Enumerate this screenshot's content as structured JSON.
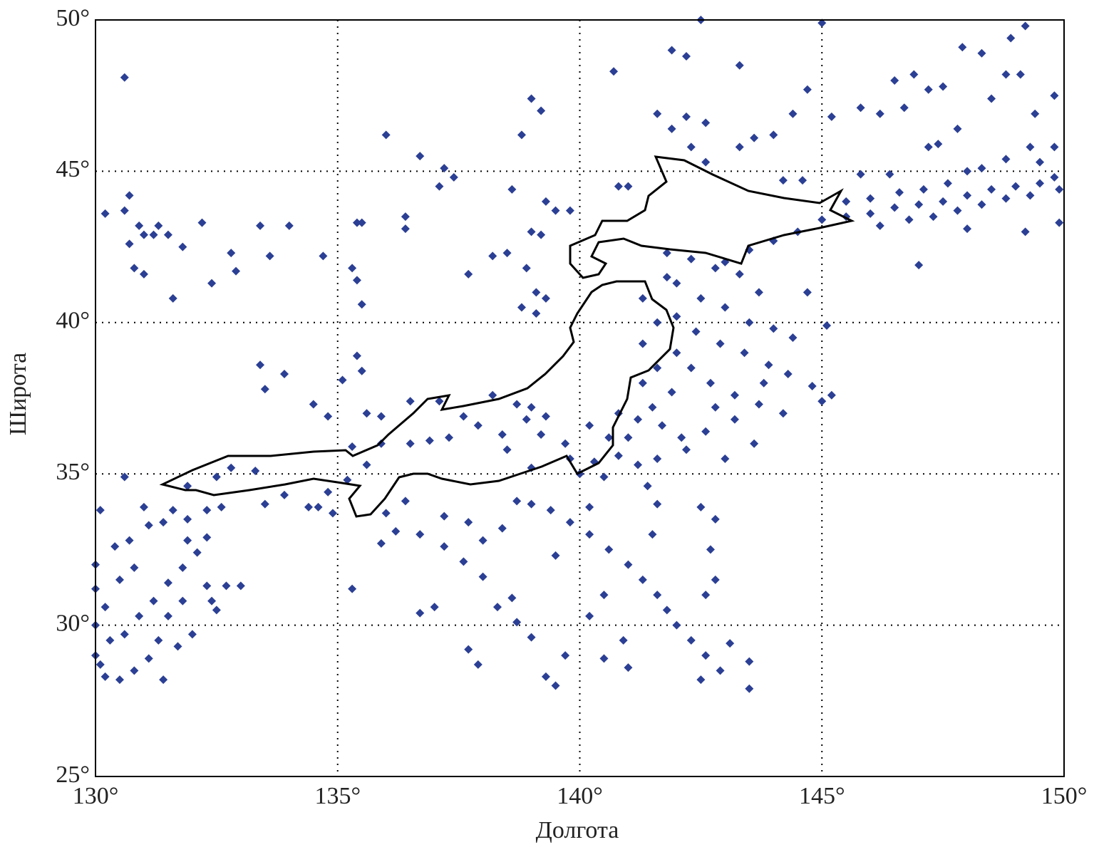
{
  "chart_data": {
    "type": "scatter",
    "xlabel": "Долгота",
    "ylabel": "Широта",
    "color": "#2b3f94",
    "grid": true,
    "xlim": [
      130,
      150
    ],
    "ylim": [
      25,
      50
    ],
    "xticks": [
      {
        "value": 130,
        "label": "130°"
      },
      {
        "value": 135,
        "label": "135°"
      },
      {
        "value": 140,
        "label": "140°"
      },
      {
        "value": 145,
        "label": "145°"
      },
      {
        "value": 150,
        "label": "150°"
      }
    ],
    "yticks": [
      {
        "value": 25,
        "label": "25°"
      },
      {
        "value": 30,
        "label": "30°"
      },
      {
        "value": 35,
        "label": "35°"
      },
      {
        "value": 40,
        "label": "40°"
      },
      {
        "value": 45,
        "label": "45°"
      },
      {
        "value": 50,
        "label": "50°"
      }
    ],
    "x": [
      130.6,
      130.2,
      130.6,
      130.7,
      130.9,
      131.0,
      131.2,
      131.5,
      131.3,
      130.7,
      130.8,
      131.0,
      131.8,
      131.6,
      132.2,
      132.4,
      132.8,
      132.9,
      133.4,
      133.6,
      134.0,
      134.7,
      135.3,
      135.4,
      135.5,
      135.4,
      135.5,
      136.0,
      136.4,
      136.4,
      136.7,
      137.2,
      137.4,
      137.1,
      137.7,
      138.2,
      138.5,
      138.6,
      138.8,
      139.0,
      139.2,
      139.3,
      139.5,
      139.8,
      139.0,
      139.2,
      138.9,
      139.1,
      138.8,
      139.1,
      139.3,
      133.4,
      133.5,
      133.9,
      134.5,
      134.8,
      135.1,
      135.4,
      135.5,
      135.6,
      135.9,
      136.5,
      137.1,
      137.6,
      138.2,
      138.7,
      139.0,
      139.3,
      138.9,
      138.4,
      137.9,
      137.3,
      136.9,
      136.5,
      135.9,
      135.3,
      135.6,
      135.2,
      134.8,
      134.6,
      134.4,
      134.9,
      133.9,
      133.5,
      133.3,
      132.8,
      132.5,
      132.6,
      131.9,
      130.6,
      140.7,
      141.9,
      142.2,
      142.5,
      143.3,
      141.6,
      141.9,
      142.2,
      142.6,
      142.3,
      142.6,
      143.3,
      143.6,
      144.0,
      144.4,
      144.7,
      145.0,
      145.2,
      145.8,
      146.2,
      146.5,
      146.9,
      146.7,
      147.2,
      147.5,
      147.9,
      148.3,
      148.9,
      149.2,
      148.8,
      149.1,
      149.4,
      149.8,
      148.5,
      147.8,
      147.2,
      148.3,
      147.4,
      146.4,
      145.8,
      144.6,
      144.2,
      141.0,
      140.8,
      145.5,
      146.0,
      146.5,
      147.0,
      147.5,
      148.0,
      148.5,
      149.0,
      149.5,
      149.9,
      146.2,
      146.8,
      147.3,
      147.8,
      148.3,
      148.8,
      149.3,
      149.8,
      149.5,
      149.8,
      149.3,
      148.8,
      148.0,
      147.6,
      147.1,
      146.6,
      146.0,
      145.5,
      145.0,
      144.5,
      144.0,
      143.5,
      143.0,
      149.2,
      149.9,
      148.0,
      147.0,
      141.8,
      142.3,
      142.8,
      143.3,
      143.7,
      142.0,
      142.5,
      143.0,
      143.5,
      144.0,
      142.0,
      142.4,
      142.9,
      143.4,
      143.9,
      144.3,
      144.8,
      145.0,
      142.0,
      142.3,
      142.7,
      143.2,
      143.7,
      144.2,
      141.9,
      141.5,
      141.7,
      142.1,
      142.6,
      143.2,
      141.2,
      141.0,
      140.8,
      141.2,
      141.6,
      142.2,
      140.3,
      139.8,
      140.0,
      140.5,
      141.4,
      141.6,
      140.8,
      141.3,
      141.6,
      141.3,
      141.6,
      141.3,
      141.8,
      143.8,
      144.4,
      144.7,
      145.1,
      145.2,
      142.8,
      143.0,
      143.6,
      138.7,
      139.0,
      139.4,
      139.8,
      140.2,
      140.6,
      141.0,
      141.3,
      141.6,
      141.8,
      142.0,
      142.3,
      142.6,
      142.9,
      142.5,
      143.1,
      143.5,
      143.5,
      142.8,
      142.5,
      142.7,
      142.8,
      142.6,
      140.5,
      140.2,
      140.9,
      139.7,
      139.3,
      139.0,
      138.7,
      138.3,
      138.6,
      138.0,
      137.6,
      137.2,
      138.0,
      138.4,
      137.7,
      137.2,
      136.7,
      136.4,
      136.0,
      135.9,
      137.0,
      136.7,
      137.7,
      137.9,
      140.5,
      141.0,
      139.5,
      140.2,
      139.5,
      141.5,
      139.0,
      138.5,
      139.2,
      139.7,
      140.2,
      140.6,
      135.3,
      136.2,
      130.0,
      130.0,
      130.2,
      130.0,
      130.3,
      130.6,
      130.9,
      131.2,
      131.5,
      131.8,
      132.1,
      130.0,
      130.2,
      130.5,
      130.8,
      131.1,
      131.4,
      131.3,
      131.5,
      131.8,
      132.3,
      132.4,
      132.5,
      132.0,
      131.7,
      130.1,
      130.4,
      130.7,
      131.1,
      131.4,
      131.0,
      131.6,
      131.9,
      132.3,
      130.5,
      130.8,
      132.7,
      133.0,
      131.9,
      132.3,
      130.1
    ],
    "values": [
      48.1,
      43.6,
      43.7,
      44.2,
      43.2,
      42.9,
      42.9,
      42.9,
      43.2,
      42.6,
      41.8,
      41.6,
      42.5,
      40.8,
      43.3,
      41.3,
      42.3,
      41.7,
      43.2,
      42.2,
      43.2,
      42.2,
      41.8,
      41.4,
      40.6,
      43.3,
      43.3,
      46.2,
      43.5,
      43.1,
      45.5,
      45.1,
      44.8,
      44.5,
      41.6,
      42.2,
      42.3,
      44.4,
      46.2,
      47.4,
      47.0,
      44.0,
      43.7,
      43.7,
      43.0,
      42.9,
      41.8,
      41.0,
      40.5,
      40.3,
      40.8,
      38.6,
      37.8,
      38.3,
      37.3,
      36.9,
      38.1,
      38.9,
      38.4,
      37.0,
      36.9,
      37.4,
      37.4,
      36.9,
      37.6,
      37.3,
      37.2,
      36.9,
      36.8,
      36.3,
      36.6,
      36.2,
      36.1,
      36.0,
      36.0,
      35.9,
      35.3,
      34.8,
      34.4,
      33.9,
      33.9,
      33.7,
      34.3,
      34.0,
      35.1,
      35.2,
      34.9,
      33.9,
      34.6,
      34.9,
      48.3,
      49.0,
      48.8,
      50.0,
      48.5,
      46.9,
      46.4,
      46.8,
      46.6,
      45.8,
      45.3,
      45.8,
      46.1,
      46.2,
      46.9,
      47.7,
      49.9,
      46.8,
      47.1,
      46.9,
      48.0,
      48.2,
      47.1,
      47.7,
      47.8,
      49.1,
      48.9,
      49.4,
      49.8,
      48.2,
      48.2,
      46.9,
      47.5,
      47.4,
      46.4,
      45.8,
      45.1,
      45.9,
      44.9,
      44.9,
      44.7,
      44.7,
      44.5,
      44.5,
      43.5,
      43.6,
      43.8,
      43.9,
      44.0,
      44.2,
      44.4,
      44.5,
      44.6,
      44.4,
      43.2,
      43.4,
      43.5,
      43.7,
      43.9,
      44.1,
      44.2,
      44.8,
      45.3,
      45.8,
      45.8,
      45.4,
      45.0,
      44.6,
      44.4,
      44.3,
      44.1,
      44.0,
      43.4,
      43.0,
      42.7,
      42.4,
      42.0,
      43.0,
      43.3,
      43.1,
      41.9,
      42.3,
      42.1,
      41.8,
      41.6,
      41.0,
      41.3,
      40.8,
      40.5,
      40.0,
      39.8,
      40.2,
      39.7,
      39.3,
      39.0,
      38.6,
      38.3,
      37.9,
      37.4,
      39.0,
      38.5,
      38.0,
      37.6,
      37.3,
      37.0,
      37.7,
      37.2,
      36.6,
      36.2,
      36.4,
      36.8,
      36.8,
      36.2,
      35.6,
      35.3,
      35.5,
      35.8,
      35.4,
      35.5,
      35.0,
      34.9,
      34.6,
      34.0,
      37.0,
      38.0,
      38.5,
      39.3,
      40.0,
      40.8,
      41.5,
      38.0,
      39.5,
      41.0,
      39.9,
      37.6,
      37.2,
      35.5,
      36.0,
      34.1,
      34.0,
      33.8,
      33.4,
      33.0,
      32.5,
      32.0,
      31.5,
      31.0,
      30.5,
      30.0,
      29.5,
      29.0,
      28.5,
      28.2,
      29.4,
      28.8,
      27.9,
      33.5,
      33.9,
      32.5,
      31.5,
      31.0,
      31.0,
      30.3,
      29.5,
      29.0,
      28.3,
      29.6,
      30.1,
      30.6,
      30.9,
      31.6,
      32.1,
      32.6,
      32.8,
      33.2,
      33.4,
      33.6,
      33.0,
      34.1,
      33.7,
      32.7,
      30.6,
      30.4,
      29.2,
      28.7,
      28.9,
      28.6,
      28.0,
      33.9,
      32.3,
      33.0,
      35.2,
      35.8,
      36.3,
      36.0,
      36.6,
      36.2,
      31.2,
      33.1,
      32.0,
      31.2,
      30.6,
      30.0,
      29.5,
      29.7,
      30.3,
      30.8,
      31.4,
      31.9,
      32.4,
      29.0,
      28.3,
      28.2,
      28.5,
      28.9,
      28.2,
      29.5,
      30.3,
      30.8,
      31.3,
      30.8,
      30.5,
      29.7,
      29.3,
      33.8,
      32.6,
      32.8,
      33.3,
      33.4,
      33.9,
      33.8,
      33.5,
      32.9,
      31.5,
      31.9,
      31.3,
      31.3,
      32.8,
      33.8,
      28.7
    ]
  }
}
